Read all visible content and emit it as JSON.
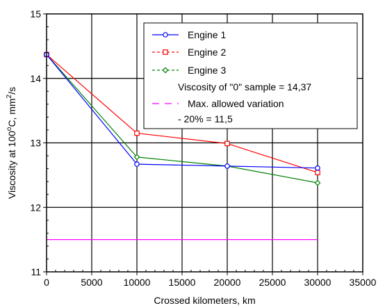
{
  "chart_data": {
    "type": "line",
    "xlabel": "Crossed kilometers, km",
    "ylabel_main": "Viscosity at 100",
    "ylabel_degree": "o",
    "ylabel_unit": "C, mm",
    "ylabel_sup": "2",
    "ylabel_tail": "/s",
    "xlim": [
      0,
      35000
    ],
    "ylim": [
      11,
      15
    ],
    "xticks": [
      0,
      5000,
      10000,
      15000,
      20000,
      25000,
      30000,
      35000
    ],
    "yticks": [
      11,
      12,
      13,
      14,
      15
    ],
    "grid": "major",
    "legend_position": "top-right",
    "series": [
      {
        "name": "Engine 1",
        "color": "#0000ff",
        "marker": "circle",
        "x": [
          0,
          10000,
          20000,
          30000
        ],
        "y": [
          14.37,
          12.67,
          12.64,
          12.61
        ]
      },
      {
        "name": "Engine 2",
        "color": "#ff0000",
        "marker": "square",
        "x": [
          0,
          10000,
          20000,
          30000
        ],
        "y": [
          14.37,
          13.15,
          12.99,
          12.54
        ]
      },
      {
        "name": "Engine 3",
        "color": "#008000",
        "marker": "diamond",
        "x": [
          0,
          10000,
          20000,
          30000
        ],
        "y": [
          14.37,
          12.78,
          12.64,
          12.38
        ]
      },
      {
        "name": "Max. allowed variation",
        "color": "#ff00ff",
        "marker": "none",
        "x": [
          0,
          30000
        ],
        "y": [
          11.5,
          11.5
        ]
      }
    ],
    "annotations": {
      "zero_sample": "Viscosity of \"0\" sample = 14,37",
      "variation_note": "- 20% = 11,5"
    }
  }
}
